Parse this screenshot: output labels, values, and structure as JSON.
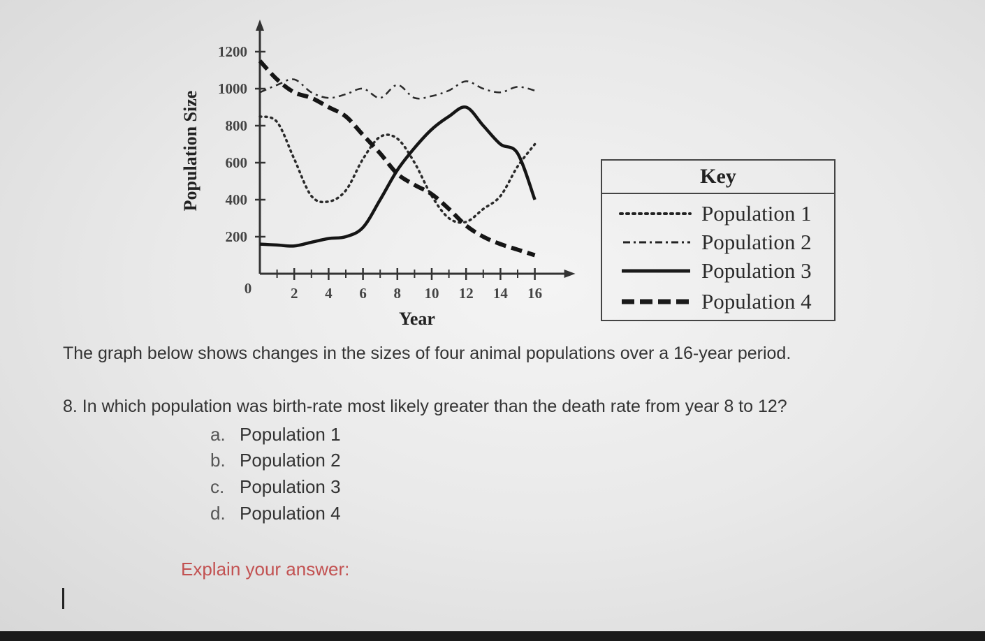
{
  "chart_data": {
    "type": "line",
    "xlabel": "Year",
    "ylabel": "Population Size",
    "x_ticks": [
      2,
      4,
      6,
      8,
      10,
      12,
      14,
      16
    ],
    "y_ticks": [
      200,
      400,
      600,
      800,
      1000,
      1200
    ],
    "origin_label": "0",
    "xlim": [
      0,
      16
    ],
    "ylim": [
      0,
      1200
    ],
    "legend_title": "Key",
    "legend_position": "right",
    "series": [
      {
        "name": "Population 1",
        "style": "dotted",
        "x": [
          0,
          1,
          2,
          3,
          4,
          5,
          6,
          7,
          8,
          9,
          10,
          11,
          12,
          13,
          14,
          15,
          16
        ],
        "y": [
          850,
          820,
          620,
          420,
          390,
          450,
          620,
          740,
          730,
          600,
          420,
          300,
          280,
          350,
          420,
          580,
          700
        ]
      },
      {
        "name": "Population 2",
        "style": "dash-dot",
        "x": [
          0,
          1,
          2,
          3,
          4,
          5,
          6,
          7,
          8,
          9,
          10,
          11,
          12,
          13,
          14,
          15,
          16
        ],
        "y": [
          980,
          1020,
          1050,
          980,
          950,
          970,
          1000,
          950,
          1020,
          950,
          960,
          990,
          1040,
          1000,
          980,
          1010,
          990
        ]
      },
      {
        "name": "Population 3",
        "style": "solid",
        "x": [
          0,
          1,
          2,
          3,
          4,
          5,
          6,
          7,
          8,
          9,
          10,
          11,
          12,
          13,
          14,
          15,
          16
        ],
        "y": [
          160,
          155,
          150,
          170,
          190,
          200,
          250,
          400,
          560,
          680,
          780,
          850,
          900,
          800,
          700,
          650,
          400
        ]
      },
      {
        "name": "Population 4",
        "style": "dashed",
        "x": [
          0,
          1,
          2,
          3,
          4,
          5,
          6,
          7,
          8,
          9,
          10,
          11,
          12,
          13,
          14,
          15,
          16
        ],
        "y": [
          1150,
          1050,
          980,
          950,
          900,
          850,
          750,
          650,
          540,
          480,
          430,
          350,
          260,
          200,
          160,
          130,
          100
        ]
      }
    ]
  },
  "intro": "The graph below shows changes in the sizes of four animal populations over a 16-year period.",
  "question": "8. In which population was birth-rate most likely greater than the death rate from year 8 to 12?",
  "options": [
    {
      "letter": "a.",
      "text": "Population 1"
    },
    {
      "letter": "b.",
      "text": "Population 2"
    },
    {
      "letter": "c.",
      "text": "Population 3"
    },
    {
      "letter": "d.",
      "text": "Population 4"
    }
  ],
  "explain_prompt": "Explain your answer:"
}
